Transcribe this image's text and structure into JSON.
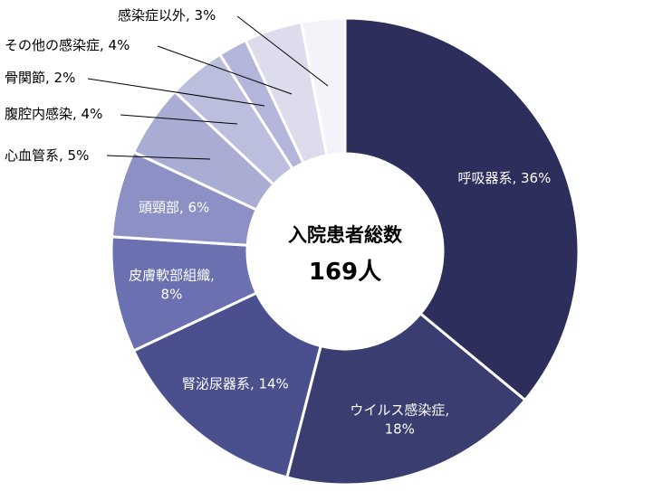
{
  "chart_data": {
    "type": "pie",
    "variant": "donut",
    "center": {
      "line1": "入院患者総数",
      "line2": "169人"
    },
    "slices": [
      {
        "name": "呼吸器系",
        "label": "呼吸器系, 36%",
        "value": 36,
        "color": "#2d2e5c",
        "label_color": "#ffffff"
      },
      {
        "name": "ウイルス感染症",
        "label": [
          "ウイルス感染症,",
          "18%"
        ],
        "value": 18,
        "color": "#3a3d70",
        "label_color": "#ffffff"
      },
      {
        "name": "腎泌尿器系",
        "label": "腎泌尿器系, 14%",
        "value": 14,
        "color": "#4a4f8e",
        "label_color": "#ffffff"
      },
      {
        "name": "皮膚軟部組織",
        "label": [
          "皮膚軟部組織,",
          "8%"
        ],
        "value": 8,
        "color": "#6a70b0",
        "label_color": "#ffffff"
      },
      {
        "name": "頭頸部",
        "label": "頭頸部, 6%",
        "value": 6,
        "color": "#8c90c4",
        "label_color": "#ffffff"
      },
      {
        "name": "心血管系",
        "label": "心血管系, 5%",
        "value": 5,
        "color": "#a9acd3",
        "label_color": "#000000"
      },
      {
        "name": "腹腔内感染",
        "label": "腹腔内感染, 4%",
        "value": 4,
        "color": "#bcbedd",
        "label_color": "#000000"
      },
      {
        "name": "骨関節",
        "label": "骨関節, 2%",
        "value": 2,
        "color": "#b3b5da",
        "label_color": "#000000"
      },
      {
        "name": "その他の感染症",
        "label": "その他の感染症, 4%",
        "value": 4,
        "color": "#dcdcec",
        "label_color": "#000000"
      },
      {
        "name": "感染症以外",
        "label": "感染症以外, 3%",
        "value": 3,
        "color": "#f3f3f9",
        "label_color": "#000000"
      }
    ]
  }
}
